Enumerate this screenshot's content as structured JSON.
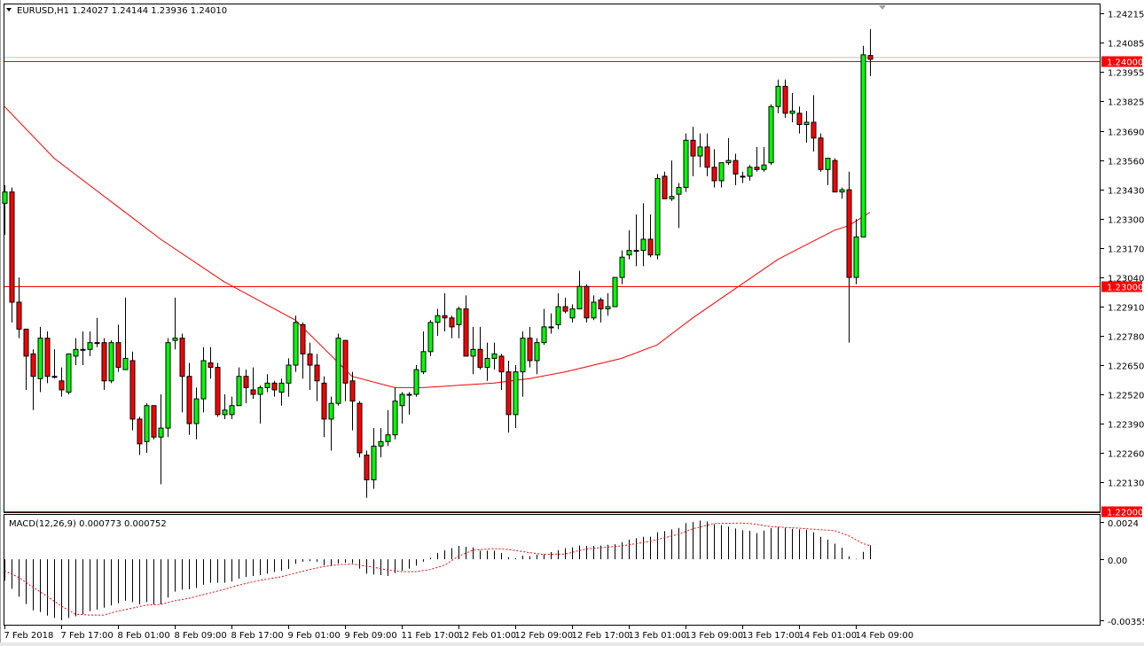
{
  "header": {
    "symbol_info": "EURUSD,H1  1.24027 1.24144 1.23936 1.24010",
    "menu_icon": "triangle-down-icon"
  },
  "colors": {
    "bull": "#00ff00",
    "bear": "#ff0000",
    "outline": "#000000",
    "moving_average": "#ff0000",
    "level_line": "#ff0000",
    "bid_line": "#c0c0c0",
    "macd_histogram": "#000000",
    "macd_signal": "#ff0000"
  },
  "chart_data": [
    {
      "type": "candlestick",
      "ylim": [
        1.21996,
        1.24258
      ],
      "grid": false,
      "x_tick_labels": [
        {
          "index": 0,
          "label": "7 Feb 2018"
        },
        {
          "index": 8,
          "label": "7 Feb 17:00"
        },
        {
          "index": 16,
          "label": "8 Feb 01:00"
        },
        {
          "index": 24,
          "label": "8 Feb 09:00"
        },
        {
          "index": 32,
          "label": "8 Feb 17:00"
        },
        {
          "index": 40,
          "label": "9 Feb 01:00"
        },
        {
          "index": 48,
          "label": "9 Feb 09:00"
        },
        {
          "index": 56,
          "label": "11 Feb 17:00"
        },
        {
          "index": 64,
          "label": "12 Feb 01:00"
        },
        {
          "index": 72,
          "label": "12 Feb 09:00"
        },
        {
          "index": 80,
          "label": "12 Feb 17:00"
        },
        {
          "index": 88,
          "label": "13 Feb 01:00"
        },
        {
          "index": 96,
          "label": "13 Feb 09:00"
        },
        {
          "index": 104,
          "label": "13 Feb 17:00"
        },
        {
          "index": 112,
          "label": "14 Feb 01:00"
        },
        {
          "index": 120,
          "label": "14 Feb 09:00"
        }
      ],
      "y_tick_labels": [
        "1.24215",
        "1.24085",
        "1.23955",
        "1.23825",
        "1.23690",
        "1.23560",
        "1.23430",
        "1.23300",
        "1.23170",
        "1.23040",
        "1.22910",
        "1.22780",
        "1.22650",
        "1.22520",
        "1.22390",
        "1.22260",
        "1.22130"
      ],
      "horizontal_levels": [
        {
          "value": 1.24,
          "label": "1.24000"
        },
        {
          "value": 1.23,
          "label": "1.23000"
        },
        {
          "value": 1.22,
          "label": "1.22000"
        }
      ],
      "bid_line": 1.2401,
      "ohlc": [
        [
          1.2337,
          1.2345,
          1.2323,
          1.2342
        ],
        [
          1.2342,
          1.2344,
          1.2284,
          1.2293
        ],
        [
          1.2293,
          1.2304,
          1.2277,
          1.2281
        ],
        [
          1.2281,
          1.2281,
          1.2254,
          1.2269
        ],
        [
          1.227,
          1.2272,
          1.2245,
          1.226
        ],
        [
          1.2259,
          1.2282,
          1.2253,
          1.2277
        ],
        [
          1.2277,
          1.228,
          1.2257,
          1.226
        ],
        [
          1.226,
          1.2272,
          1.2259,
          1.226
        ],
        [
          1.2258,
          1.2264,
          1.2251,
          1.2254
        ],
        [
          1.2253,
          1.227,
          1.2252,
          1.227
        ],
        [
          1.2269,
          1.2277,
          1.2265,
          1.2272
        ],
        [
          1.2272,
          1.228,
          1.2265,
          1.2272
        ],
        [
          1.2272,
          1.228,
          1.2269,
          1.2275
        ],
        [
          1.2275,
          1.2286,
          1.2273,
          1.2275
        ],
        [
          1.2275,
          1.2277,
          1.2254,
          1.2258
        ],
        [
          1.2258,
          1.2276,
          1.2257,
          1.2275
        ],
        [
          1.2275,
          1.2283,
          1.2262,
          1.2264
        ],
        [
          1.2263,
          1.2295,
          1.2263,
          1.2268
        ],
        [
          1.2267,
          1.2271,
          1.2236,
          1.2241
        ],
        [
          1.2241,
          1.2242,
          1.2225,
          1.223
        ],
        [
          1.2231,
          1.2248,
          1.2226,
          1.2247
        ],
        [
          1.2247,
          1.2247,
          1.2232,
          1.2233
        ],
        [
          1.2233,
          1.2252,
          1.2212,
          1.2237
        ],
        [
          1.2237,
          1.2277,
          1.2233,
          1.2275
        ],
        [
          1.2276,
          1.2295,
          1.2272,
          1.2277
        ],
        [
          1.2277,
          1.2279,
          1.2244,
          1.226
        ],
        [
          1.226,
          1.2266,
          1.2234,
          1.2239
        ],
        [
          1.2239,
          1.2255,
          1.2232,
          1.225
        ],
        [
          1.225,
          1.2273,
          1.2244,
          1.2267
        ],
        [
          1.2266,
          1.2273,
          1.2259,
          1.2264
        ],
        [
          1.2264,
          1.2266,
          1.2242,
          1.2243
        ],
        [
          1.2243,
          1.2252,
          1.2241,
          1.2245
        ],
        [
          1.2243,
          1.2251,
          1.2241,
          1.2247
        ],
        [
          1.2247,
          1.2264,
          1.2247,
          1.226
        ],
        [
          1.226,
          1.2263,
          1.2248,
          1.2255
        ],
        [
          1.2254,
          1.2264,
          1.225,
          1.2252
        ],
        [
          1.2252,
          1.2256,
          1.2239,
          1.2255
        ],
        [
          1.2255,
          1.2261,
          1.2253,
          1.2257
        ],
        [
          1.2257,
          1.2258,
          1.2251,
          1.2254
        ],
        [
          1.2253,
          1.2259,
          1.2247,
          1.2257
        ],
        [
          1.2257,
          1.2268,
          1.2251,
          1.2265
        ],
        [
          1.2265,
          1.2287,
          1.2262,
          1.2284
        ],
        [
          1.2283,
          1.2284,
          1.2259,
          1.227
        ],
        [
          1.227,
          1.2275,
          1.2254,
          1.2265
        ],
        [
          1.2265,
          1.227,
          1.2249,
          1.2258
        ],
        [
          1.2257,
          1.226,
          1.2233,
          1.2241
        ],
        [
          1.2241,
          1.2251,
          1.2227,
          1.2248
        ],
        [
          1.2248,
          1.2279,
          1.2247,
          1.2277
        ],
        [
          1.2276,
          1.2276,
          1.2249,
          1.2257
        ],
        [
          1.2258,
          1.2262,
          1.2236,
          1.2249
        ],
        [
          1.2248,
          1.2249,
          1.2224,
          1.2226
        ],
        [
          1.2225,
          1.2227,
          1.2206,
          1.2214
        ],
        [
          1.2214,
          1.2237,
          1.221,
          1.2229
        ],
        [
          1.2229,
          1.2237,
          1.2224,
          1.2231
        ],
        [
          1.2231,
          1.2245,
          1.2229,
          1.2234
        ],
        [
          1.2234,
          1.2255,
          1.2232,
          1.2249
        ],
        [
          1.2247,
          1.2253,
          1.2239,
          1.2252
        ],
        [
          1.2252,
          1.2253,
          1.2243,
          1.2252
        ],
        [
          1.2252,
          1.2265,
          1.2251,
          1.2263
        ],
        [
          1.2262,
          1.228,
          1.2261,
          1.2271
        ],
        [
          1.2271,
          1.2285,
          1.2269,
          1.2284
        ],
        [
          1.2284,
          1.229,
          1.2278,
          1.2287
        ],
        [
          1.2287,
          1.2297,
          1.228,
          1.2286
        ],
        [
          1.2286,
          1.2287,
          1.2277,
          1.2282
        ],
        [
          1.2283,
          1.2291,
          1.2277,
          1.229
        ],
        [
          1.229,
          1.2296,
          1.2269,
          1.2269
        ],
        [
          1.2269,
          1.2282,
          1.2261,
          1.2272
        ],
        [
          1.2272,
          1.2282,
          1.2263,
          1.2264
        ],
        [
          1.2264,
          1.2275,
          1.2258,
          1.2268
        ],
        [
          1.2268,
          1.2275,
          1.2263,
          1.227
        ],
        [
          1.2269,
          1.227,
          1.2254,
          1.2262
        ],
        [
          1.2262,
          1.2267,
          1.2235,
          1.2243
        ],
        [
          1.2243,
          1.2265,
          1.2237,
          1.2262
        ],
        [
          1.2262,
          1.228,
          1.2251,
          1.2277
        ],
        [
          1.2277,
          1.2282,
          1.2264,
          1.2267
        ],
        [
          1.2267,
          1.2277,
          1.2261,
          1.2275
        ],
        [
          1.2275,
          1.229,
          1.2274,
          1.2282
        ],
        [
          1.2282,
          1.2288,
          1.2279,
          1.2282
        ],
        [
          1.2283,
          1.2297,
          1.2281,
          1.2291
        ],
        [
          1.2291,
          1.2295,
          1.2288,
          1.2289
        ],
        [
          1.2286,
          1.2292,
          1.2284,
          1.229
        ],
        [
          1.229,
          1.2307,
          1.229,
          1.23
        ],
        [
          1.23,
          1.2301,
          1.2284,
          1.2286
        ],
        [
          1.2286,
          1.2296,
          1.2285,
          1.2293
        ],
        [
          1.2294,
          1.2295,
          1.2284,
          1.229
        ],
        [
          1.229,
          1.2297,
          1.2287,
          1.2291
        ],
        [
          1.2291,
          1.2304,
          1.2291,
          1.2304
        ],
        [
          1.2304,
          1.2316,
          1.2301,
          1.2313
        ],
        [
          1.2314,
          1.2325,
          1.2312,
          1.2316
        ],
        [
          1.2316,
          1.2332,
          1.2309,
          1.2316
        ],
        [
          1.2316,
          1.2337,
          1.2309,
          1.2321
        ],
        [
          1.2321,
          1.2332,
          1.2313,
          1.2314
        ],
        [
          1.2314,
          1.235,
          1.2312,
          1.2348
        ],
        [
          1.2349,
          1.2351,
          1.2339,
          1.2339
        ],
        [
          1.2339,
          1.2356,
          1.2338,
          1.234
        ],
        [
          1.2341,
          1.2346,
          1.2326,
          1.2344
        ],
        [
          1.2344,
          1.2368,
          1.2342,
          1.2365
        ],
        [
          1.2365,
          1.2371,
          1.2349,
          1.2358
        ],
        [
          1.2358,
          1.2368,
          1.2353,
          1.2362
        ],
        [
          1.2362,
          1.2368,
          1.2349,
          1.2353
        ],
        [
          1.2353,
          1.2361,
          1.2344,
          1.2347
        ],
        [
          1.2347,
          1.2355,
          1.2344,
          1.2355
        ],
        [
          1.2355,
          1.2366,
          1.2354,
          1.2356
        ],
        [
          1.2356,
          1.2359,
          1.2345,
          1.235
        ],
        [
          1.2349,
          1.2351,
          1.2346,
          1.2349
        ],
        [
          1.2349,
          1.2354,
          1.2347,
          1.2353
        ],
        [
          1.2353,
          1.2362,
          1.2351,
          1.2352
        ],
        [
          1.2352,
          1.2362,
          1.2351,
          1.2354
        ],
        [
          1.2355,
          1.2381,
          1.2354,
          1.238
        ],
        [
          1.238,
          1.2392,
          1.2377,
          1.2389
        ],
        [
          1.2389,
          1.2392,
          1.2375,
          1.2377
        ],
        [
          1.2377,
          1.2386,
          1.2373,
          1.2378
        ],
        [
          1.2377,
          1.238,
          1.2368,
          1.2372
        ],
        [
          1.2372,
          1.2378,
          1.2364,
          1.2373
        ],
        [
          1.2373,
          1.2385,
          1.236,
          1.2366
        ],
        [
          1.2366,
          1.2368,
          1.2351,
          1.2352
        ],
        [
          1.2352,
          1.2357,
          1.2345,
          1.2357
        ],
        [
          1.2356,
          1.2357,
          1.2342,
          1.2342
        ],
        [
          1.2342,
          1.2344,
          1.2339,
          1.2343
        ],
        [
          1.2343,
          1.2351,
          1.2275,
          1.2304
        ],
        [
          1.2304,
          1.233,
          1.2301,
          1.2322
        ],
        [
          1.2322,
          1.2407,
          1.2322,
          1.2403
        ],
        [
          1.24027,
          1.24144,
          1.23936,
          1.2401
        ]
      ],
      "moving_average": [
        [
          0,
          1.238
        ],
        [
          7,
          1.2357
        ],
        [
          22,
          1.2321
        ],
        [
          31,
          1.2302
        ],
        [
          41,
          1.2285
        ],
        [
          49,
          1.226
        ],
        [
          55,
          1.2255
        ],
        [
          59,
          1.2255
        ],
        [
          69,
          1.2257
        ],
        [
          74,
          1.2259
        ],
        [
          79,
          1.2262
        ],
        [
          87,
          1.2268
        ],
        [
          92,
          1.2274
        ],
        [
          97,
          1.2286
        ],
        [
          103,
          1.2299
        ],
        [
          109,
          1.2312
        ],
        [
          117,
          1.2325
        ],
        [
          119,
          1.2327
        ],
        [
          122,
          1.2333
        ]
      ]
    },
    {
      "type": "bar",
      "title": "MACD(12,26,9) 0.000773 0.000752",
      "ylim": [
        -0.003553,
        0.0024
      ],
      "y_tick_labels": [
        "0.0024",
        "0.00",
        "-0.003553"
      ],
      "histogram": [
        -0.00117,
        -0.00162,
        -0.00206,
        -0.00246,
        -0.00281,
        -0.0029,
        -0.0031,
        -0.00322,
        -0.00335,
        -0.00323,
        -0.00314,
        -0.00302,
        -0.00285,
        -0.00277,
        -0.00266,
        -0.00254,
        -0.00241,
        -0.00228,
        -0.00236,
        -0.00248,
        -0.00236,
        -0.00248,
        -0.00248,
        -0.00211,
        -0.00178,
        -0.00167,
        -0.00165,
        -0.00157,
        -0.0014,
        -0.00129,
        -0.00129,
        -0.00129,
        -0.00122,
        -0.00107,
        -0.00097,
        -0.00092,
        -0.00087,
        -0.00079,
        -0.00069,
        -0.00063,
        -0.00053,
        -0.00025,
        -0.00013,
        -0.0001,
        -0.00013,
        -0.00033,
        -0.00038,
        -0.00023,
        -0.00018,
        -0.00021,
        -0.00051,
        -0.00079,
        -0.00084,
        -0.00087,
        -0.00092,
        -0.00076,
        -0.00063,
        -0.00051,
        -0.00035,
        -0.00013,
        8e-05,
        0.00035,
        0.0005,
        0.00061,
        0.00074,
        0.00069,
        0.00066,
        0.00048,
        0.00048,
        0.00048,
        0.00035,
        0.00012,
        7e-05,
        0.0002,
        0.00017,
        0.00026,
        0.00028,
        0.0004,
        0.0005,
        0.00061,
        0.00066,
        0.00076,
        0.00074,
        0.00074,
        0.00076,
        0.0008,
        0.00083,
        0.00094,
        0.00109,
        0.00116,
        0.00124,
        0.00125,
        0.00149,
        0.00155,
        0.00165,
        0.00173,
        0.002,
        0.00205,
        0.00213,
        0.00208,
        0.00193,
        0.00188,
        0.0018,
        0.0017,
        0.0016,
        0.00157,
        0.00144,
        0.00158,
        0.00172,
        0.00178,
        0.00173,
        0.00168,
        0.00165,
        0.00163,
        0.00149,
        0.00124,
        0.00109,
        0.00086,
        0.00064,
        0.00017,
        3e-05,
        0.00041,
        0.000773
      ],
      "signal": [
        [
          0,
          -0.00063
        ],
        [
          2,
          -0.00099
        ],
        [
          4,
          -0.00153
        ],
        [
          6,
          -0.00203
        ],
        [
          8,
          -0.00257
        ],
        [
          10,
          -0.00302
        ],
        [
          12,
          -0.00307
        ],
        [
          14,
          -0.00307
        ],
        [
          16,
          -0.00285
        ],
        [
          18,
          -0.00269
        ],
        [
          20,
          -0.00252
        ],
        [
          22,
          -0.00249
        ],
        [
          24,
          -0.00228
        ],
        [
          26,
          -0.00215
        ],
        [
          28,
          -0.00195
        ],
        [
          31,
          -0.00165
        ],
        [
          33,
          -0.00142
        ],
        [
          35,
          -0.00124
        ],
        [
          37,
          -0.00109
        ],
        [
          39,
          -0.00096
        ],
        [
          41,
          -0.00076
        ],
        [
          43,
          -0.00056
        ],
        [
          45,
          -0.0004
        ],
        [
          47,
          -0.0003
        ],
        [
          49,
          -0.00026
        ],
        [
          52,
          -0.00043
        ],
        [
          54,
          -0.00059
        ],
        [
          56,
          -0.00068
        ],
        [
          58,
          -0.00068
        ],
        [
          60,
          -0.00056
        ],
        [
          62,
          -0.00033
        ],
        [
          64,
          0.00017
        ],
        [
          66,
          0.0005
        ],
        [
          69,
          0.00059
        ],
        [
          71,
          0.00054
        ],
        [
          74,
          0.00037
        ],
        [
          76,
          0.00027
        ],
        [
          79,
          0.00029
        ],
        [
          82,
          0.00057
        ],
        [
          87,
          0.00074
        ],
        [
          91,
          0.00099
        ],
        [
          95,
          0.00138
        ],
        [
          97,
          0.00168
        ],
        [
          100,
          0.00197
        ],
        [
          104,
          0.002
        ],
        [
          106,
          0.00193
        ],
        [
          108,
          0.0018
        ],
        [
          112,
          0.00171
        ],
        [
          117,
          0.00158
        ],
        [
          119,
          0.00129
        ],
        [
          121,
          0.00087
        ],
        [
          122,
          0.000752
        ]
      ]
    }
  ]
}
